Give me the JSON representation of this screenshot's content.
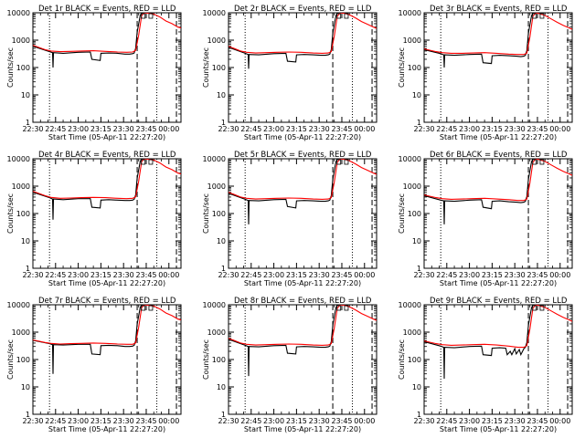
{
  "layout": {
    "columns": 3,
    "rows": 3
  },
  "colors": {
    "events": "#000000",
    "lld": "#ff0000",
    "axis": "#000000",
    "background": "#ffffff"
  },
  "common": {
    "ylabel": "Counts/sec",
    "xlabel": "Start Time (05-Apr-11 22:27:20)",
    "xticks": [
      "22:30",
      "22:45",
      "23:00",
      "23:15",
      "23:30",
      "23:45",
      "00:00"
    ],
    "xticks_min": [
      0,
      15,
      30,
      45,
      60,
      75,
      90
    ],
    "yticks": [
      "1",
      "10",
      "100",
      "1000",
      "10000"
    ],
    "yticks_val": [
      1,
      10,
      100,
      1000,
      10000
    ]
  },
  "chart_data": [
    {
      "type": "line",
      "title": "Det 1r BLACK = Events, RED = LLD",
      "xlim": [
        0,
        98
      ],
      "ylim": [
        1,
        10000
      ],
      "ylog": true,
      "dotted_x": [
        11,
        82
      ],
      "dashed_x": [
        69,
        95
      ],
      "series": [
        {
          "name": "Events",
          "color": "#000000",
          "x": [
            0,
            11,
            13,
            13.3,
            13.6,
            20,
            30,
            38,
            39,
            44.5,
            45,
            50,
            56,
            61,
            64,
            66,
            67,
            68,
            69,
            71,
            72
          ],
          "y": [
            600,
            380,
            350,
            100,
            350,
            330,
            360,
            370,
            200,
            180,
            330,
            340,
            330,
            310,
            310,
            320,
            340,
            500,
            2000,
            8000,
            10000
          ]
        },
        {
          "name": "LLD",
          "color": "#ff0000",
          "x": [
            0,
            8,
            12,
            18,
            25,
            32,
            40,
            48,
            56,
            62,
            66,
            68,
            70,
            72,
            74,
            77,
            80,
            84,
            88,
            92,
            96,
            98
          ],
          "y": [
            650,
            450,
            400,
            380,
            390,
            400,
            410,
            390,
            370,
            360,
            370,
            420,
            1500,
            8000,
            10000,
            9500,
            9000,
            7000,
            5000,
            4000,
            3000,
            2800
          ]
        }
      ]
    },
    {
      "type": "line",
      "title": "Det 2r BLACK = Events, RED = LLD",
      "xlim": [
        0,
        98
      ],
      "ylim": [
        1,
        10000
      ],
      "ylog": true,
      "dotted_x": [
        11,
        82
      ],
      "dashed_x": [
        69,
        95
      ],
      "series": [
        {
          "name": "Events",
          "color": "#000000",
          "x": [
            0,
            11,
            13,
            13.3,
            13.6,
            20,
            30,
            38,
            39,
            44.5,
            45,
            50,
            56,
            61,
            64,
            66,
            67,
            68,
            69,
            71,
            72
          ],
          "y": [
            550,
            330,
            300,
            90,
            300,
            290,
            320,
            330,
            170,
            160,
            290,
            300,
            290,
            280,
            280,
            290,
            310,
            450,
            1800,
            7500,
            10000
          ]
        },
        {
          "name": "LLD",
          "color": "#ff0000",
          "x": [
            0,
            8,
            12,
            18,
            25,
            32,
            40,
            48,
            56,
            62,
            66,
            68,
            70,
            72,
            74,
            77,
            80,
            84,
            88,
            92,
            96,
            98
          ],
          "y": [
            600,
            400,
            360,
            340,
            350,
            360,
            370,
            360,
            340,
            330,
            340,
            380,
            1400,
            7500,
            10000,
            9500,
            8500,
            6500,
            4800,
            3800,
            3000,
            2700
          ]
        }
      ]
    },
    {
      "type": "line",
      "title": "Det 3r BLACK = Events, RED = LLD",
      "xlim": [
        0,
        98
      ],
      "ylim": [
        1,
        10000
      ],
      "ylog": true,
      "dotted_x": [
        11,
        82
      ],
      "dashed_x": [
        69,
        95
      ],
      "series": [
        {
          "name": "Events",
          "color": "#000000",
          "x": [
            0,
            11,
            13,
            13.3,
            13.6,
            20,
            30,
            38,
            39,
            44.5,
            45,
            50,
            56,
            61,
            64,
            66,
            67,
            68,
            69,
            71,
            72
          ],
          "y": [
            450,
            320,
            290,
            100,
            290,
            280,
            300,
            310,
            150,
            140,
            270,
            280,
            270,
            260,
            250,
            260,
            280,
            420,
            1800,
            7500,
            10000
          ]
        },
        {
          "name": "LLD",
          "color": "#ff0000",
          "x": [
            0,
            8,
            12,
            18,
            25,
            32,
            40,
            48,
            56,
            62,
            66,
            68,
            70,
            72,
            74,
            77,
            80,
            84,
            88,
            92,
            96,
            98
          ],
          "y": [
            480,
            380,
            350,
            330,
            330,
            340,
            350,
            330,
            310,
            300,
            300,
            340,
            1300,
            7500,
            10000,
            9000,
            8000,
            6000,
            4500,
            3500,
            2800,
            2500
          ]
        }
      ]
    },
    {
      "type": "line",
      "title": "Det 4r BLACK = Events, RED = LLD",
      "xlim": [
        0,
        98
      ],
      "ylim": [
        1,
        10000
      ],
      "ylog": true,
      "dotted_x": [
        11,
        82
      ],
      "dashed_x": [
        69,
        95
      ],
      "series": [
        {
          "name": "Events",
          "color": "#000000",
          "x": [
            0,
            11,
            13,
            13.3,
            13.6,
            20,
            30,
            38,
            39,
            44.5,
            45,
            50,
            56,
            61,
            64,
            66,
            67,
            68,
            69,
            71,
            72
          ],
          "y": [
            600,
            380,
            340,
            60,
            340,
            320,
            350,
            350,
            170,
            160,
            310,
            320,
            310,
            300,
            300,
            310,
            330,
            480,
            2000,
            8000,
            10000
          ]
        },
        {
          "name": "LLD",
          "color": "#ff0000",
          "x": [
            0,
            8,
            12,
            18,
            25,
            32,
            40,
            48,
            56,
            62,
            66,
            68,
            70,
            72,
            74,
            77,
            80,
            84,
            88,
            92,
            96,
            98
          ],
          "y": [
            650,
            450,
            390,
            360,
            370,
            380,
            390,
            380,
            360,
            350,
            360,
            400,
            1500,
            8000,
            10000,
            9500,
            9000,
            7000,
            5000,
            4000,
            3000,
            2800
          ]
        }
      ]
    },
    {
      "type": "line",
      "title": "Det 5r BLACK = Events, RED = LLD",
      "xlim": [
        0,
        98
      ],
      "ylim": [
        1,
        10000
      ],
      "ylog": true,
      "dotted_x": [
        11,
        82
      ],
      "dashed_x": [
        69,
        95
      ],
      "series": [
        {
          "name": "Events",
          "color": "#000000",
          "x": [
            0,
            11,
            13,
            13.3,
            13.6,
            20,
            30,
            38,
            39,
            44.5,
            45,
            50,
            56,
            61,
            64,
            66,
            67,
            68,
            69,
            71,
            72
          ],
          "y": [
            550,
            330,
            300,
            40,
            300,
            290,
            320,
            330,
            180,
            160,
            290,
            300,
            290,
            280,
            280,
            290,
            310,
            450,
            1800,
            7500,
            10000
          ]
        },
        {
          "name": "LLD",
          "color": "#ff0000",
          "x": [
            0,
            8,
            12,
            18,
            25,
            32,
            40,
            48,
            56,
            62,
            66,
            68,
            70,
            72,
            74,
            77,
            80,
            84,
            88,
            92,
            96,
            98
          ],
          "y": [
            600,
            400,
            360,
            340,
            350,
            360,
            370,
            360,
            340,
            330,
            340,
            380,
            1400,
            7500,
            10000,
            9500,
            8500,
            6500,
            4800,
            3800,
            3000,
            2700
          ]
        }
      ]
    },
    {
      "type": "line",
      "title": "Det 6r BLACK = Events, RED = LLD",
      "xlim": [
        0,
        98
      ],
      "ylim": [
        1,
        10000
      ],
      "ylog": true,
      "dotted_x": [
        11,
        82
      ],
      "dashed_x": [
        69,
        95
      ],
      "series": [
        {
          "name": "Events",
          "color": "#000000",
          "x": [
            0,
            11,
            13,
            13.3,
            13.6,
            20,
            30,
            38,
            39,
            44.5,
            45,
            50,
            56,
            61,
            64,
            66,
            67,
            68,
            69,
            71,
            72
          ],
          "y": [
            450,
            310,
            290,
            40,
            290,
            280,
            310,
            320,
            170,
            150,
            280,
            290,
            270,
            260,
            250,
            260,
            280,
            420,
            1800,
            7500,
            10000
          ]
        },
        {
          "name": "LLD",
          "color": "#ff0000",
          "x": [
            0,
            8,
            12,
            18,
            25,
            32,
            40,
            48,
            56,
            62,
            66,
            68,
            70,
            72,
            74,
            77,
            80,
            84,
            88,
            92,
            96,
            98
          ],
          "y": [
            480,
            380,
            350,
            330,
            340,
            350,
            360,
            340,
            320,
            300,
            300,
            340,
            1300,
            7500,
            10000,
            9000,
            8000,
            6000,
            4500,
            3500,
            2800,
            2500
          ]
        }
      ]
    },
    {
      "type": "line",
      "title": "Det 7r BLACK = Events, RED = LLD",
      "xlim": [
        0,
        98
      ],
      "ylim": [
        1,
        10000
      ],
      "ylog": true,
      "dotted_x": [
        11,
        82
      ],
      "dashed_x": [
        69,
        95
      ],
      "series": [
        {
          "name": "Events",
          "color": "#000000",
          "x": [
            0,
            11,
            13,
            13.3,
            13.6,
            20,
            30,
            38,
            39,
            44.5,
            45,
            50,
            56,
            61,
            64,
            66,
            67,
            68,
            69,
            71,
            72
          ],
          "y": [
            500,
            380,
            350,
            30,
            350,
            340,
            360,
            360,
            160,
            150,
            320,
            330,
            320,
            300,
            300,
            310,
            330,
            480,
            2000,
            8000,
            10000
          ]
        },
        {
          "name": "LLD",
          "color": "#ff0000",
          "x": [
            0,
            8,
            12,
            18,
            25,
            32,
            40,
            48,
            56,
            62,
            66,
            68,
            70,
            72,
            74,
            77,
            80,
            84,
            88,
            92,
            96,
            98
          ],
          "y": [
            520,
            420,
            390,
            370,
            380,
            390,
            400,
            390,
            370,
            360,
            360,
            400,
            1500,
            8000,
            10000,
            9500,
            9000,
            7000,
            5000,
            4000,
            3000,
            2800
          ]
        }
      ]
    },
    {
      "type": "line",
      "title": "Det 8r BLACK = Events, RED = LLD",
      "xlim": [
        0,
        98
      ],
      "ylim": [
        1,
        10000
      ],
      "ylog": true,
      "dotted_x": [
        11,
        82
      ],
      "dashed_x": [
        69,
        95
      ],
      "series": [
        {
          "name": "Events",
          "color": "#000000",
          "x": [
            0,
            11,
            13,
            13.3,
            13.6,
            20,
            30,
            38,
            39,
            44.5,
            45,
            50,
            56,
            61,
            64,
            66,
            67,
            68,
            69,
            71,
            72
          ],
          "y": [
            550,
            330,
            300,
            25,
            300,
            290,
            320,
            330,
            170,
            160,
            290,
            300,
            290,
            280,
            280,
            290,
            310,
            450,
            1800,
            7500,
            10000
          ]
        },
        {
          "name": "LLD",
          "color": "#ff0000",
          "x": [
            0,
            8,
            12,
            18,
            25,
            32,
            40,
            48,
            56,
            62,
            66,
            68,
            70,
            72,
            74,
            77,
            80,
            84,
            88,
            92,
            96,
            98
          ],
          "y": [
            600,
            400,
            360,
            340,
            350,
            360,
            370,
            360,
            340,
            330,
            340,
            380,
            1400,
            7500,
            10000,
            9500,
            8500,
            6500,
            4800,
            3800,
            3000,
            2700
          ]
        }
      ]
    },
    {
      "type": "line",
      "title": "Det 9r BLACK = Events, RED = LLD",
      "xlim": [
        0,
        98
      ],
      "ylim": [
        1,
        10000
      ],
      "ylog": true,
      "dotted_x": [
        11,
        82
      ],
      "dashed_x": [
        69,
        95
      ],
      "series": [
        {
          "name": "Events",
          "color": "#000000",
          "x": [
            0,
            11,
            13,
            13.3,
            13.6,
            20,
            30,
            38,
            39,
            44.5,
            45,
            50,
            54,
            55,
            57,
            58,
            60,
            61,
            63,
            64,
            66,
            67,
            68,
            69,
            71,
            72
          ],
          "y": [
            450,
            310,
            280,
            20,
            280,
            270,
            300,
            310,
            150,
            140,
            260,
            270,
            260,
            150,
            200,
            150,
            250,
            160,
            230,
            150,
            250,
            280,
            420,
            1800,
            7500,
            10000
          ]
        },
        {
          "name": "LLD",
          "color": "#ff0000",
          "x": [
            0,
            8,
            12,
            18,
            25,
            32,
            40,
            48,
            56,
            62,
            66,
            68,
            70,
            72,
            74,
            77,
            80,
            84,
            88,
            92,
            96,
            98
          ],
          "y": [
            480,
            380,
            350,
            330,
            340,
            350,
            360,
            340,
            310,
            280,
            280,
            320,
            1300,
            7500,
            10000,
            9000,
            8000,
            6000,
            4500,
            3500,
            2800,
            2500
          ]
        }
      ]
    }
  ]
}
